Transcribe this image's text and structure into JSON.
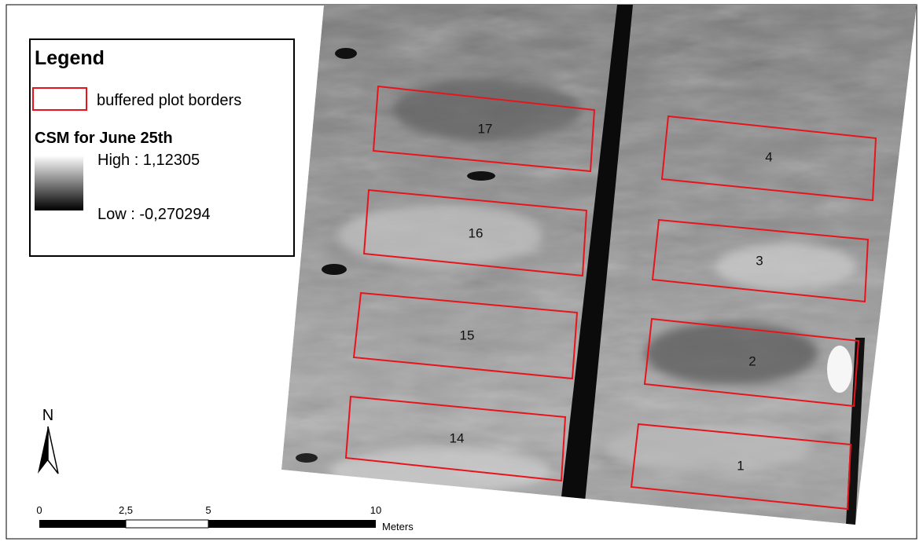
{
  "legend": {
    "title": "Legend",
    "entries": [
      "buffered plot borders"
    ],
    "raster_title": "CSM for June 25th",
    "high_label": "High : 1,12305",
    "low_label": "Low : -0,270294"
  },
  "plots": [
    "17",
    "16",
    "15",
    "14",
    "4",
    "3",
    "2",
    "1"
  ],
  "north_arrow": "N",
  "scale_bar": {
    "labels": [
      "0",
      "2,5",
      "5",
      "10"
    ],
    "unit": "Meters"
  }
}
